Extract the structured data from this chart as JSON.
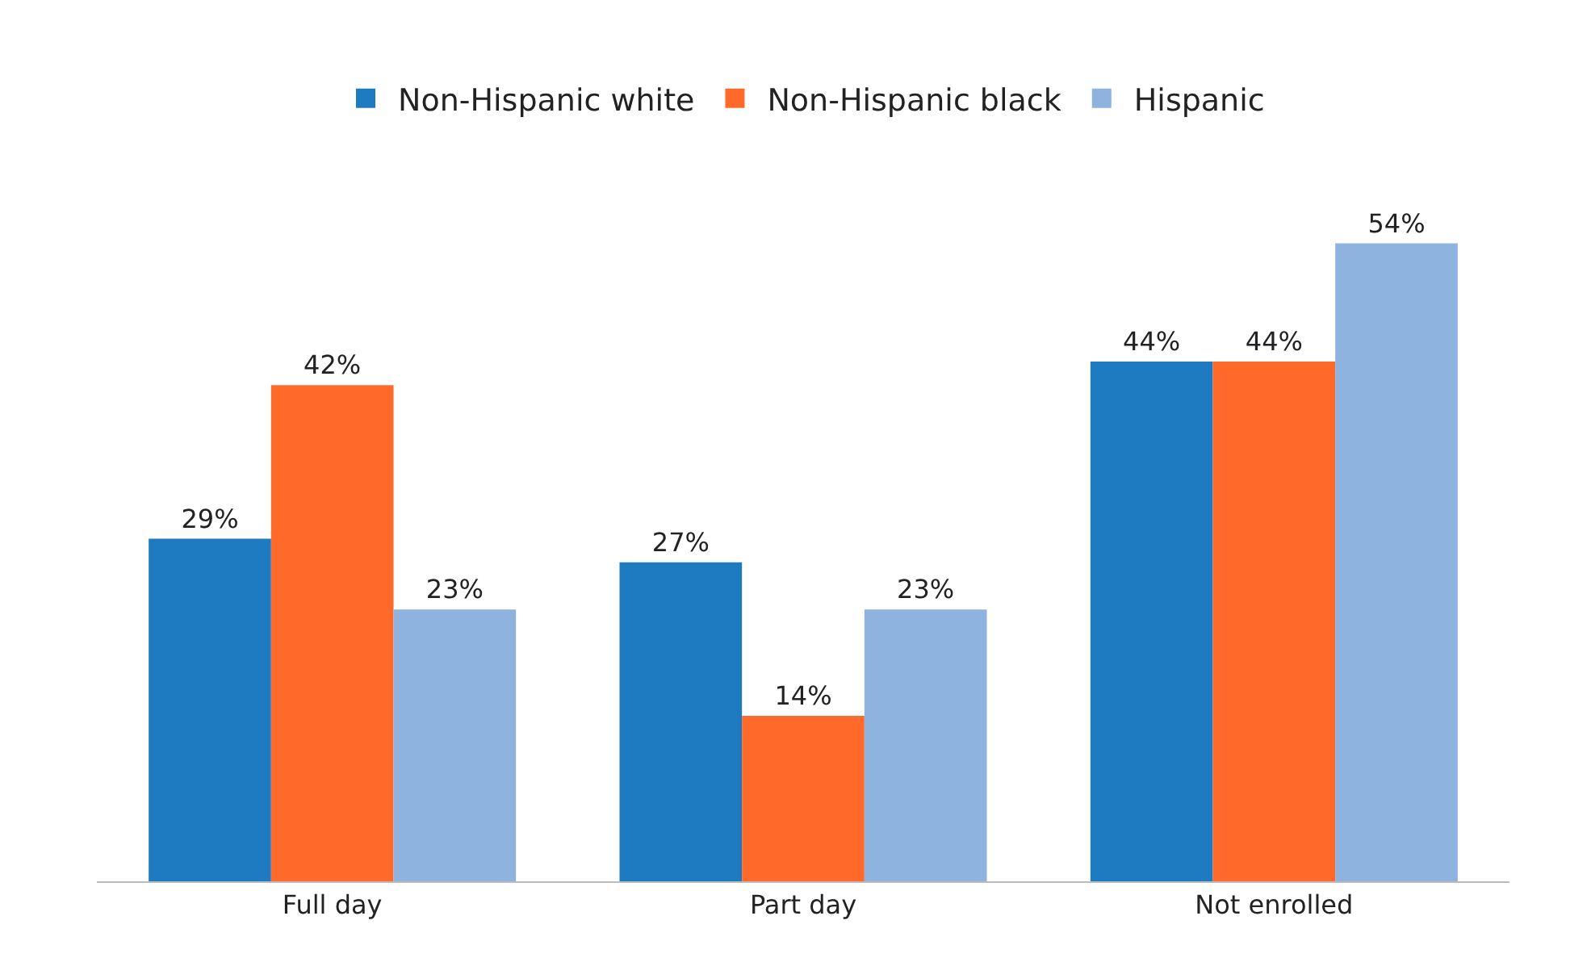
{
  "chart_data": {
    "type": "bar",
    "categories": [
      "Full day",
      "Part day",
      "Not enrolled"
    ],
    "series": [
      {
        "name": "Non-Hispanic white",
        "color": "#1f7bc1",
        "values": [
          29,
          27,
          44
        ],
        "value_labels": [
          "29%",
          "27%",
          "44%"
        ]
      },
      {
        "name": "Non-Hispanic black",
        "color": "#ff6a2b",
        "values": [
          42,
          14,
          44
        ],
        "value_labels": [
          "42%",
          "14%",
          "44%"
        ]
      },
      {
        "name": "Hispanic",
        "color": "#8db3de",
        "values": [
          23,
          23,
          54
        ],
        "value_labels": [
          "23%",
          "23%",
          "54%"
        ]
      }
    ],
    "legend": "top",
    "grid": false
  }
}
